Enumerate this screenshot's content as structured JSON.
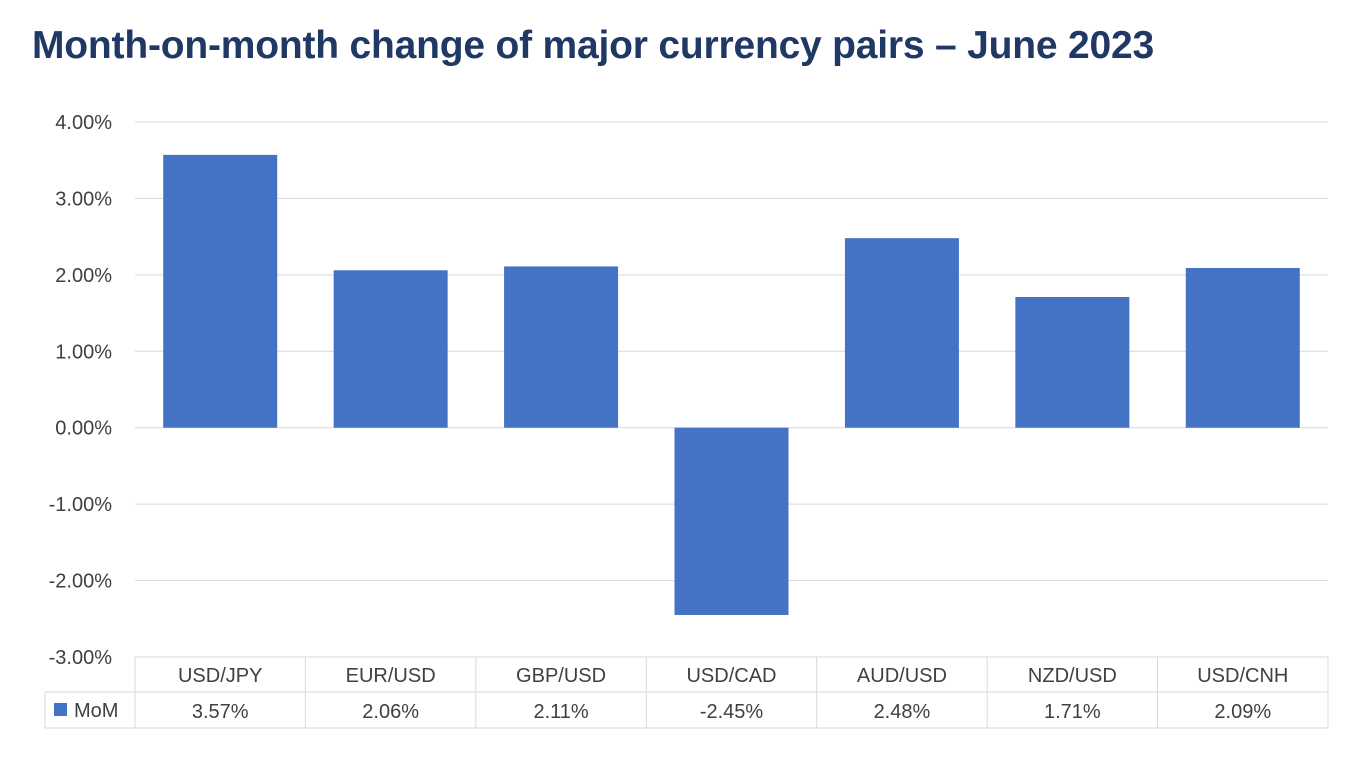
{
  "chart_data": {
    "type": "bar",
    "title": "Month-on-month change of major currency pairs – June 2023",
    "xlabel": "",
    "ylabel": "",
    "ylim": [
      -0.03,
      0.04
    ],
    "yticks": [
      0.04,
      0.03,
      0.02,
      0.01,
      0.0,
      -0.01,
      -0.02,
      -0.03
    ],
    "ytick_labels": [
      "4.00%",
      "3.00%",
      "2.00%",
      "1.00%",
      "0.00%",
      "-1.00%",
      "-2.00%",
      "-3.00%"
    ],
    "categories": [
      "USD/JPY",
      "EUR/USD",
      "GBP/USD",
      "USD/CAD",
      "AUD/USD",
      "NZD/USD",
      "USD/CNH"
    ],
    "series": [
      {
        "name": "MoM",
        "values": [
          0.0357,
          0.0206,
          0.0211,
          -0.0245,
          0.0248,
          0.0171,
          0.0209
        ],
        "value_labels": [
          "3.57%",
          "2.06%",
          "2.11%",
          "-2.45%",
          "2.48%",
          "1.71%",
          "2.09%"
        ]
      }
    ],
    "grid": true,
    "legend": "data-table",
    "colors": {
      "bar": "#4472c4",
      "title": "#1f3864",
      "text": "#404040",
      "grid": "#d9d9d9"
    }
  }
}
